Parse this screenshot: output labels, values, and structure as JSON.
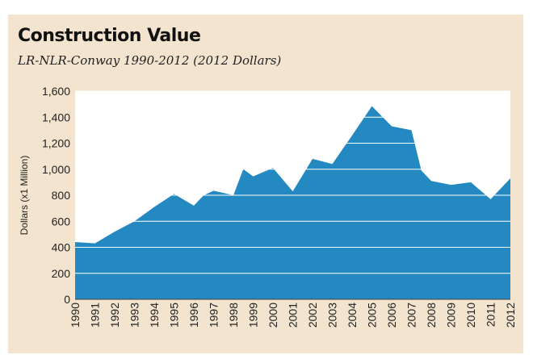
{
  "chart_data": {
    "type": "area",
    "title": "Construction Value",
    "subtitle": "LR-NLR-Conway 1990-2012 (2012 Dollars)",
    "ylabel": "Dollars (x1 Million)",
    "xlabel": "",
    "ylim": [
      0,
      1600
    ],
    "yticks": [
      0,
      200,
      400,
      600,
      800,
      1000,
      1200,
      1400,
      1600
    ],
    "ytick_labels": [
      "0",
      "200",
      "400",
      "600",
      "800",
      "1,000",
      "1,200",
      "1,400",
      "1,600"
    ],
    "x_labels": [
      "1990",
      "1991",
      "1992",
      "1993",
      "1994",
      "1995",
      "1996",
      "1997",
      "1998",
      "1999",
      "2000",
      "2001",
      "2002",
      "2003",
      "2004",
      "2005",
      "2006",
      "2007",
      "2008",
      "2009",
      "2010",
      "2011",
      "2012"
    ],
    "x": [
      1990,
      1991,
      1992,
      1993,
      1994,
      1995,
      1996,
      1996.5,
      1997,
      1998,
      1998.5,
      1999,
      2000,
      2001,
      2002,
      2003,
      2004,
      2005,
      2006,
      2007,
      2007.5,
      2008,
      2009,
      2010,
      2011,
      2012
    ],
    "values": [
      440,
      430,
      520,
      600,
      710,
      810,
      720,
      800,
      835,
      800,
      1000,
      945,
      1010,
      830,
      1080,
      1040,
      1260,
      1485,
      1330,
      1300,
      990,
      910,
      880,
      900,
      770,
      930
    ],
    "grid": true,
    "colors": {
      "fill": "#2589c1",
      "plot_bg": "#ffffff",
      "panel_bg": "#f3e4cf",
      "grid": "#ffffff"
    }
  }
}
